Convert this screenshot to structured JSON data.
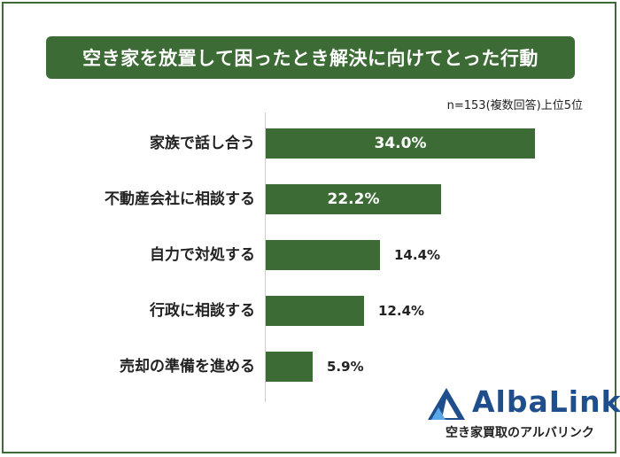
{
  "title": "空き家を放置して困ったとき解決に向けてとった行動",
  "note": "n=153(複数回答)上位5位",
  "chart_data": {
    "type": "bar",
    "orientation": "horizontal",
    "categories": [
      "家族で話し合う",
      "不動産会社に相談する",
      "自力で対処する",
      "行政に相談する",
      "売却の準備を進める"
    ],
    "values": [
      34.0,
      22.2,
      14.4,
      12.4,
      5.9
    ],
    "value_labels": [
      "34.0%",
      "22.2%",
      "14.4%",
      "12.4%",
      "5.9%"
    ],
    "unit": "%",
    "xlim": [
      0,
      34.0
    ],
    "grid": false,
    "bar_color": "#3d6b35"
  },
  "logo": {
    "name": "AlbaLink",
    "subtitle": "空き家買取のアルバリンク",
    "color": "#1f4e8c"
  }
}
